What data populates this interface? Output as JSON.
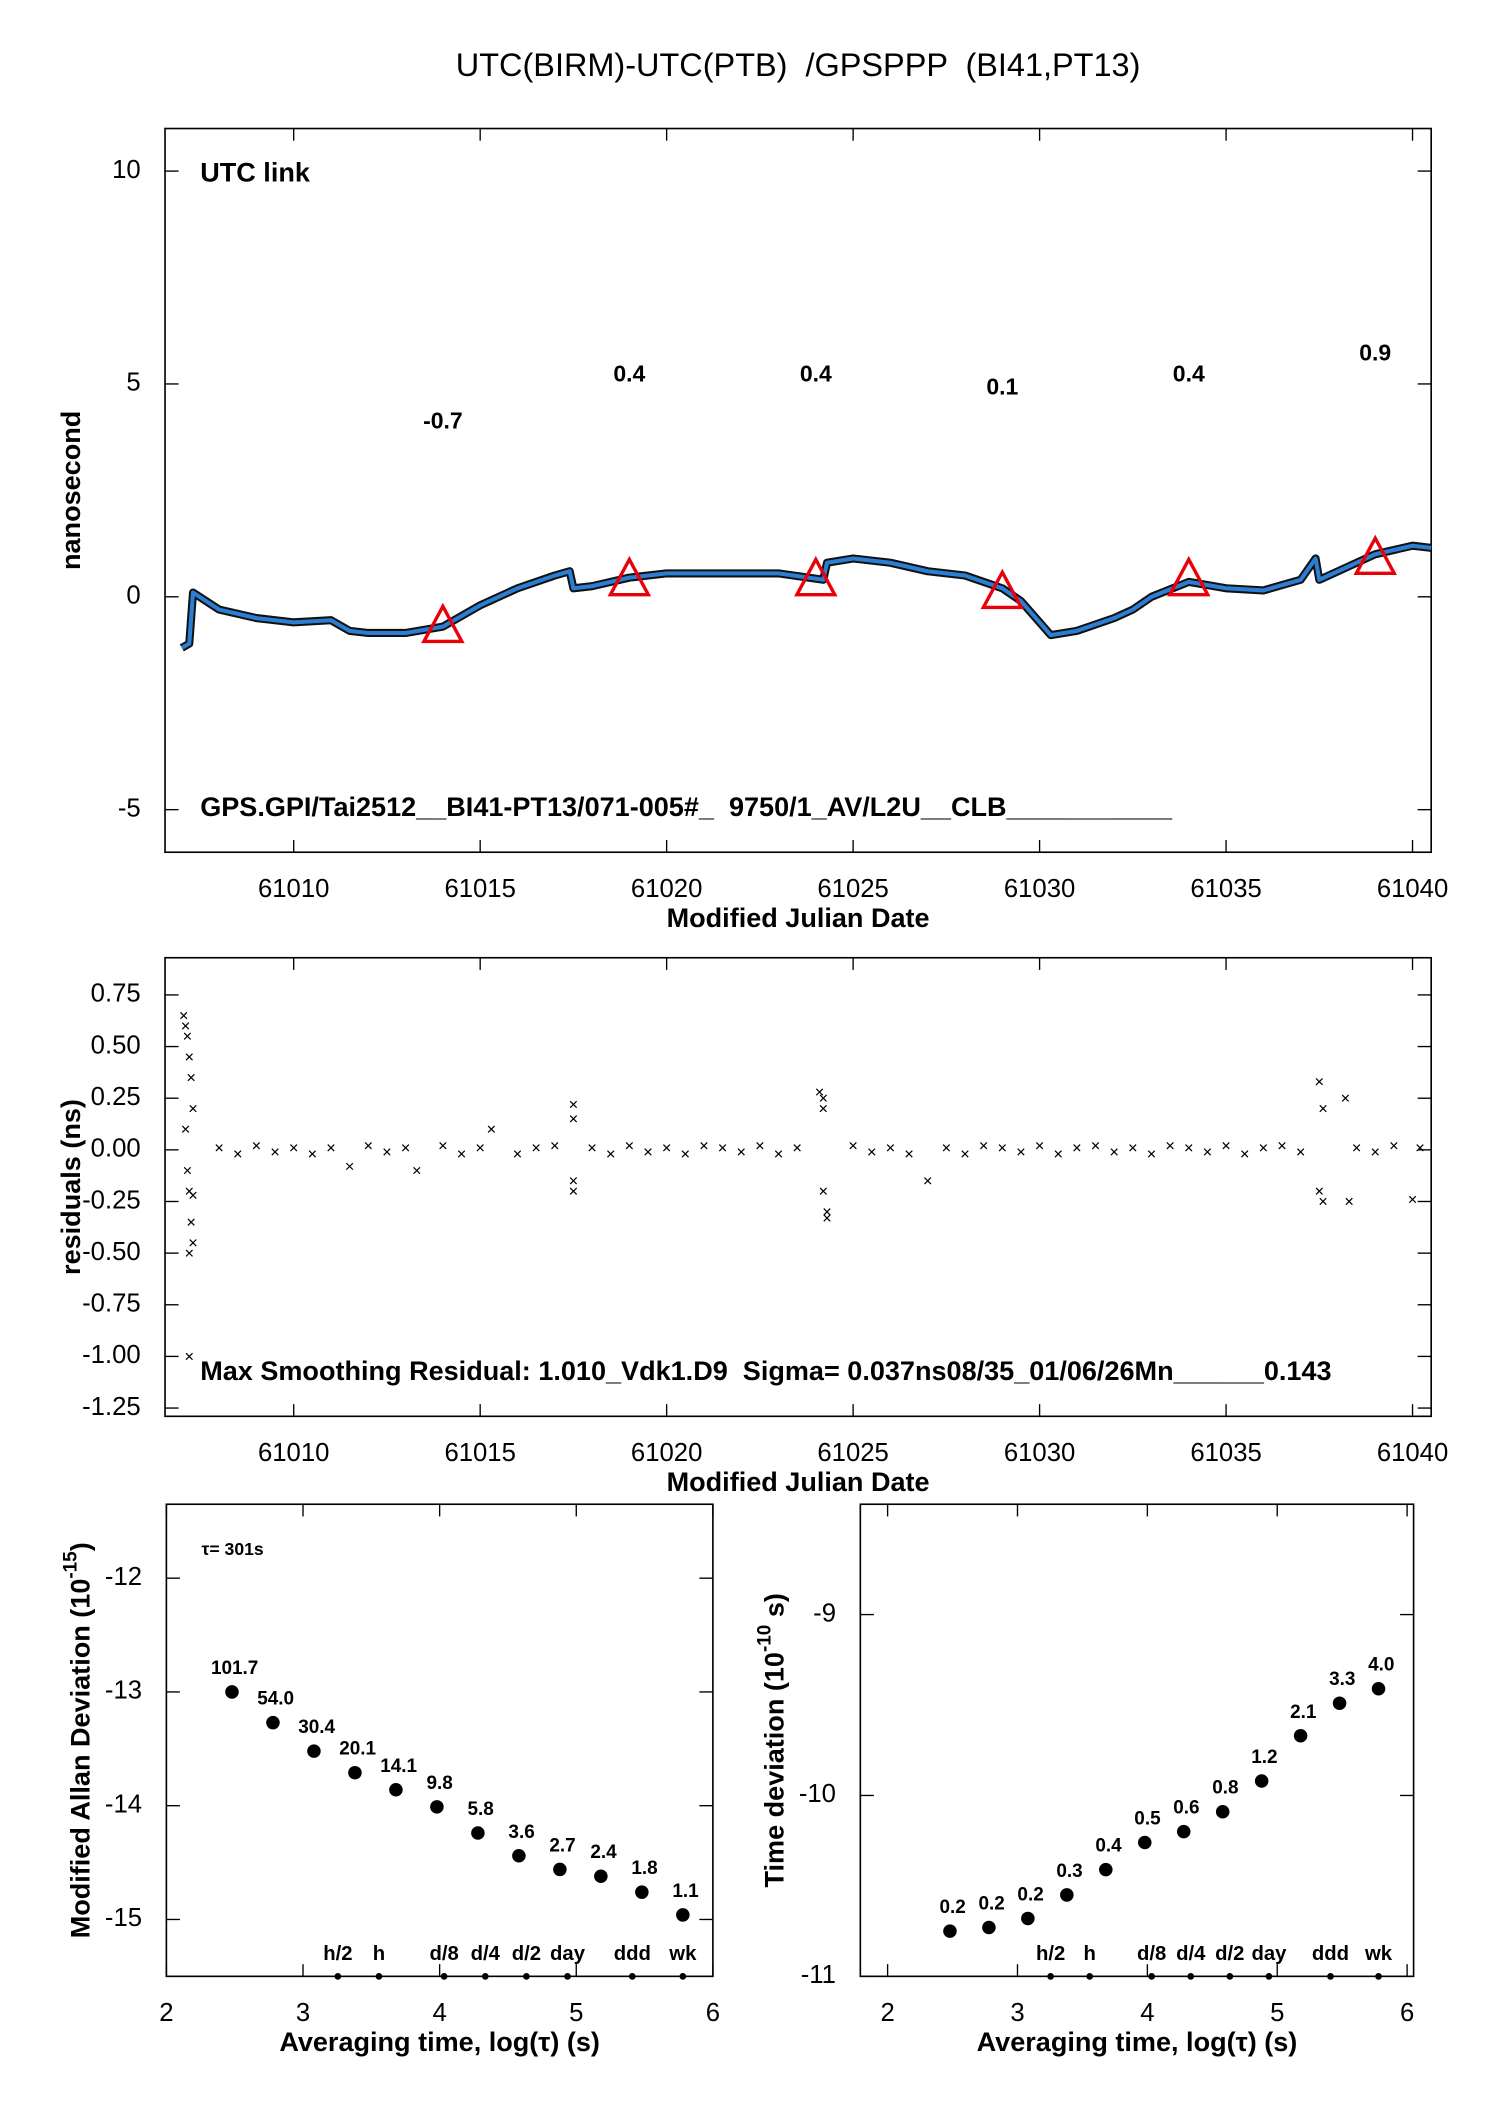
{
  "chart_data": [
    {
      "type": "line",
      "title": "UTC(BIRM)-UTC(PTB)  /GPSPPP  (BI41,PT13)",
      "xlabel": "Modified Julian Date",
      "ylabel": "nanosecond",
      "label": "UTC link",
      "footer": "GPS.GPI/Tai2512__BI41-PT13/071-005#_  9750/1_AV/L2U__CLB___________",
      "xlim": [
        61006.55,
        61040.5
      ],
      "xticks": [
        61010,
        61015,
        61020,
        61025,
        61030,
        61035,
        61040
      ],
      "ylim": [
        -6,
        11
      ],
      "yticks": [
        -5,
        0,
        5,
        10
      ],
      "series": [
        {
          "marker": "line",
          "color": "#2a7fd4",
          "x": [
            61007.0,
            61007.2,
            61007.3,
            61008,
            61009,
            61010,
            61011,
            61011.5,
            61012,
            61013,
            61014,
            61015,
            61016,
            61017,
            61017.4,
            61017.5,
            61018,
            61019,
            61020,
            61021,
            61022,
            61023,
            61023.8,
            61024.2,
            61024.3,
            61025,
            61026,
            61027,
            61028,
            61029,
            61029.5,
            61030,
            61030.3,
            61031,
            61032,
            61032.5,
            61033,
            61034,
            61035,
            61036,
            61037,
            61037.4,
            61037.5,
            61038,
            61039,
            61040,
            61040.5
          ],
          "values": [
            -1.2,
            -1.1,
            0.1,
            -0.3,
            -0.5,
            -0.6,
            -0.55,
            -0.8,
            -0.85,
            -0.85,
            -0.7,
            -0.2,
            0.2,
            0.5,
            0.6,
            0.2,
            0.25,
            0.45,
            0.55,
            0.55,
            0.55,
            0.55,
            0.45,
            0.4,
            0.8,
            0.9,
            0.8,
            0.6,
            0.5,
            0.2,
            -0.1,
            -0.6,
            -0.9,
            -0.8,
            -0.5,
            -0.3,
            0.0,
            0.35,
            0.2,
            0.15,
            0.4,
            0.9,
            0.4,
            0.6,
            1.0,
            1.2,
            1.15
          ]
        },
        {
          "marker": "triangle",
          "color": "#e8000b",
          "x": [
            61014,
            61019,
            61024,
            61029,
            61034,
            61039
          ],
          "values": [
            -0.7,
            0.4,
            0.4,
            0.1,
            0.4,
            0.9
          ]
        }
      ]
    },
    {
      "type": "scatter",
      "xlabel": "Modified Julian Date",
      "ylabel": "residuals (ns)",
      "footer": "Max Smoothing Residual: 1.010_Vdk1.D9  Sigma= 0.037ns08/35_01/06/26Mn______0.143",
      "xlim": [
        61006.55,
        61040.5
      ],
      "xticks": [
        61010,
        61015,
        61020,
        61025,
        61030,
        61035,
        61040
      ],
      "ylim": [
        -1.29,
        0.93
      ],
      "yticks": [
        {
          "value": 0.75,
          "label": "0.75"
        },
        {
          "value": 0.5,
          "label": "0.50"
        },
        {
          "value": 0.25,
          "label": "0.25"
        },
        {
          "value": 0,
          "label": "0.00"
        },
        {
          "value": -0.25,
          "label": "-0.25"
        },
        {
          "value": -0.5,
          "label": "-0.50"
        },
        {
          "value": -0.75,
          "label": "-0.75"
        },
        {
          "value": -1,
          "label": "-1.00"
        },
        {
          "value": -1.25,
          "label": "-1.25"
        }
      ],
      "series": [
        {
          "marker": "x",
          "color": "#000000",
          "x": [
            61007.05,
            61007.1,
            61007.15,
            61007.2,
            61007.25,
            61007.3,
            61007.1,
            61007.15,
            61007.2,
            61007.25,
            61007.3,
            61007.2,
            61007.3,
            61007.2,
            61008,
            61008.5,
            61009,
            61009.5,
            61010,
            61010.5,
            61011,
            61011.5,
            61012,
            61012.5,
            61013,
            61013.3,
            61014,
            61014.5,
            61015,
            61015.3,
            61016,
            61016.5,
            61017,
            61017.5,
            61017.5,
            61017.5,
            61017.5,
            61018,
            61018.5,
            61019,
            61019.5,
            61020,
            61020.5,
            61021,
            61021.5,
            61022,
            61022.5,
            61023,
            61023.5,
            61024.1,
            61024.2,
            61024.2,
            61024.3,
            61024.3,
            61024.2,
            61025,
            61025.5,
            61026,
            61026.5,
            61027,
            61027.5,
            61028,
            61028.5,
            61029,
            61029.5,
            61030,
            61030.5,
            61031,
            61031.5,
            61032,
            61032.5,
            61033,
            61033.5,
            61034,
            61034.5,
            61035,
            61035.5,
            61036,
            61036.5,
            61037,
            61037.5,
            61037.5,
            61037.6,
            61037.6,
            61038.2,
            61038.3,
            61038.5,
            61039,
            61039.5,
            61040,
            61040.2
          ],
          "values": [
            0.65,
            0.6,
            0.55,
            0.45,
            0.35,
            0.2,
            0.1,
            -0.1,
            -0.2,
            -0.35,
            -0.45,
            -0.5,
            -0.22,
            -1.0,
            0.01,
            -0.02,
            0.02,
            -0.01,
            0.01,
            -0.02,
            0.01,
            -0.08,
            0.02,
            -0.01,
            0.01,
            -0.1,
            0.02,
            -0.02,
            0.01,
            0.1,
            -0.02,
            0.01,
            0.02,
            0.22,
            0.15,
            -0.15,
            -0.2,
            0.01,
            -0.02,
            0.02,
            -0.01,
            0.01,
            -0.02,
            0.02,
            0.01,
            -0.01,
            0.02,
            -0.02,
            0.01,
            0.28,
            0.25,
            -0.2,
            -0.3,
            -0.33,
            0.2,
            0.02,
            -0.01,
            0.01,
            -0.02,
            -0.15,
            0.01,
            -0.02,
            0.02,
            0.01,
            -0.01,
            0.02,
            -0.02,
            0.01,
            0.02,
            -0.01,
            0.01,
            -0.02,
            0.02,
            0.01,
            -0.01,
            0.02,
            -0.02,
            0.01,
            0.02,
            -0.01,
            0.33,
            -0.2,
            0.2,
            -0.25,
            0.25,
            -0.25,
            0.01,
            -0.01,
            0.02,
            -0.24,
            0.01
          ]
        }
      ]
    },
    {
      "type": "scatter",
      "xlabel": "Averaging time, log(τ) (s)",
      "ylabel": "Modified Allan Deviation (10",
      "ylabel_exp": "-15",
      "ylabel_end": ")",
      "note": "τ= 301s",
      "xlim": [
        2,
        6
      ],
      "xticks": [
        2,
        3,
        4,
        5,
        6
      ],
      "ylim": [
        -15.5,
        -11.35
      ],
      "yticks": [
        -15,
        -14,
        -13,
        -12
      ],
      "series": [
        {
          "marker": "dot",
          "color": "#000000",
          "label_color": "#e8000b",
          "x": [
            2.48,
            2.78,
            3.08,
            3.38,
            3.68,
            3.98,
            4.28,
            4.58,
            4.88,
            5.18,
            5.48,
            5.78
          ],
          "values": [
            -13.0,
            -13.27,
            -13.52,
            -13.71,
            -13.86,
            -14.01,
            -14.24,
            -14.44,
            -14.56,
            -14.62,
            -14.76,
            -14.96
          ],
          "point_labels": [
            "101.7",
            "54.0",
            "30.4",
            "20.1",
            "14.1",
            "9.8",
            "5.8",
            "3.6",
            "2.7",
            "2.4",
            "1.8",
            "1.1"
          ]
        }
      ],
      "time_markers": {
        "labels": [
          "h/2",
          "h",
          "d/8",
          "d/4",
          "d/2",
          "day",
          "ddd",
          "wk"
        ],
        "x": [
          3.255,
          3.556,
          4.033,
          4.334,
          4.635,
          4.936,
          5.41,
          5.78
        ]
      }
    },
    {
      "type": "scatter",
      "xlabel": "Averaging time, log(τ) (s)",
      "ylabel": "Time deviation (10",
      "ylabel_exp": "-10",
      "ylabel_end": " s)",
      "xlim": [
        1.79,
        6.05
      ],
      "xticks": [
        2,
        3,
        4,
        5,
        6
      ],
      "ylim": [
        -11.0,
        -8.39
      ],
      "yticks": [
        -11,
        -10,
        -9
      ],
      "series": [
        {
          "marker": "dot",
          "color": "#000000",
          "label_color": "#e8000b",
          "x": [
            2.48,
            2.78,
            3.08,
            3.38,
            3.68,
            3.98,
            4.28,
            4.58,
            4.88,
            5.18,
            5.48,
            5.78
          ],
          "values": [
            -10.75,
            -10.73,
            -10.68,
            -10.55,
            -10.41,
            -10.26,
            -10.2,
            -10.09,
            -9.92,
            -9.67,
            -9.49,
            -9.41
          ],
          "point_labels": [
            "0.2",
            "0.2",
            "0.2",
            "0.3",
            "0.4",
            "0.5",
            "0.6",
            "0.8",
            "1.2",
            "2.1",
            "3.3",
            "4.0"
          ]
        }
      ],
      "time_markers": {
        "labels": [
          "h/2",
          "h",
          "d/8",
          "d/4",
          "d/2",
          "day",
          "ddd",
          "wk"
        ],
        "x": [
          3.255,
          3.556,
          4.033,
          4.334,
          4.635,
          4.936,
          5.41,
          5.78
        ]
      }
    }
  ]
}
